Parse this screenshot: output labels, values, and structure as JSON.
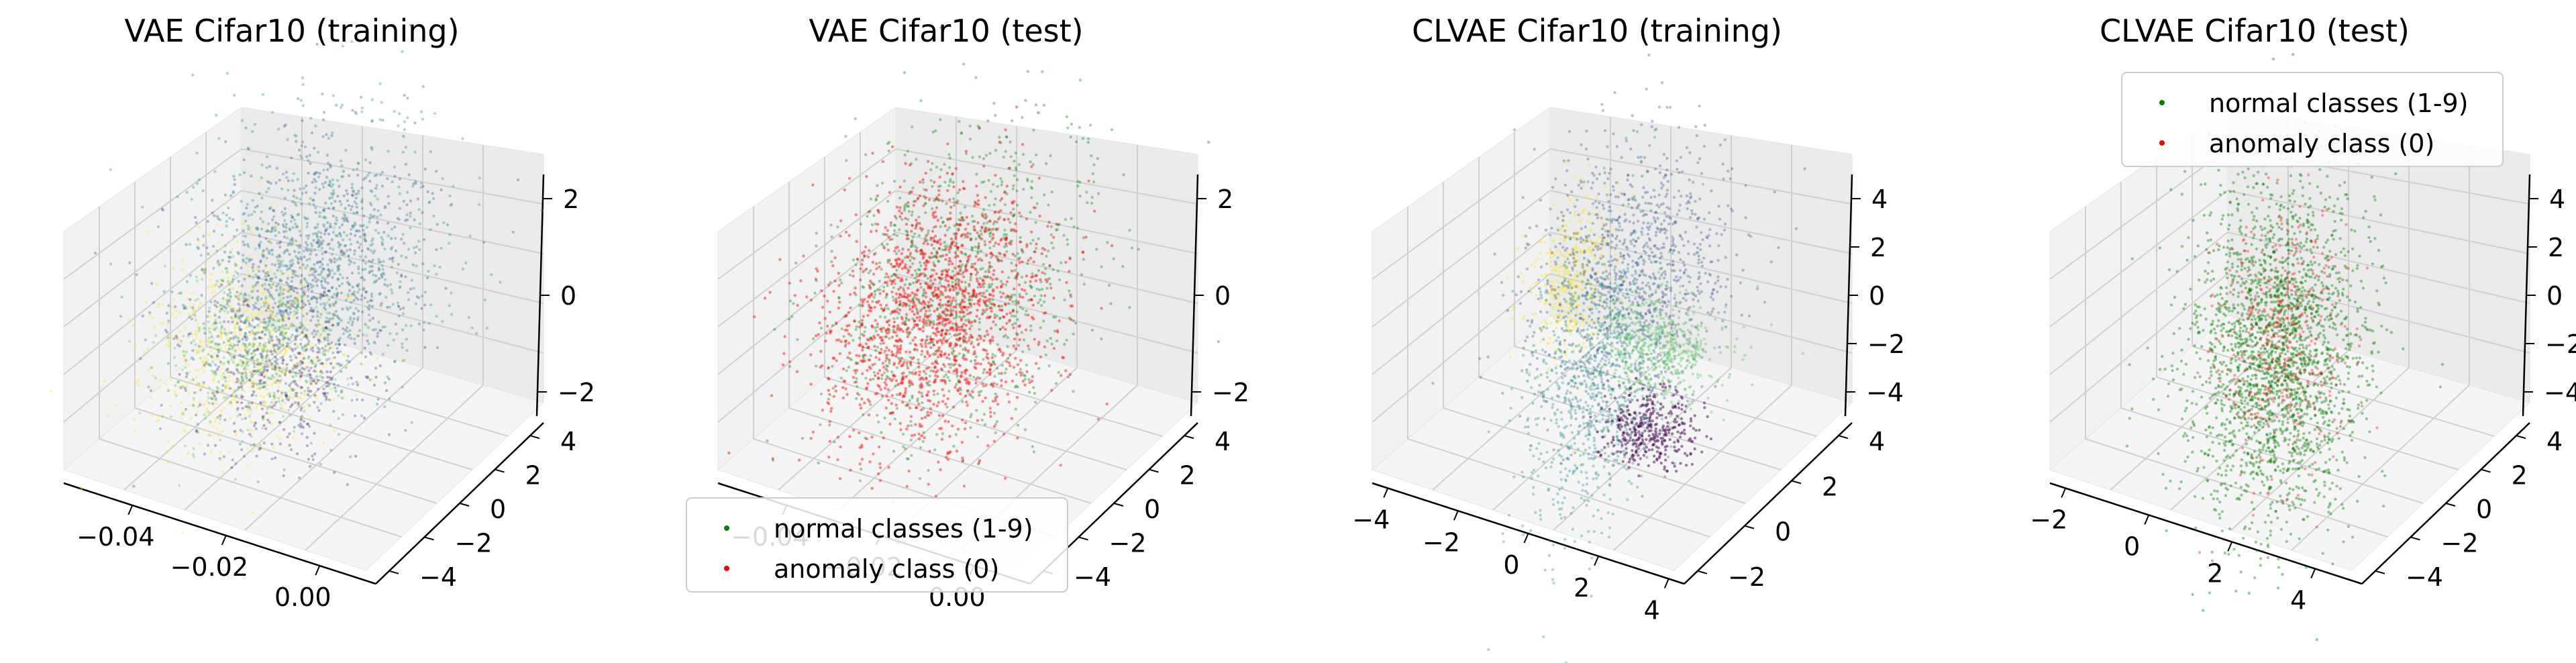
{
  "figure": {
    "background": "#ffffff"
  },
  "chart_data": [
    {
      "type": "scatter",
      "title": "VAE Cifar10 (training)",
      "coloring": "viridis by class",
      "xticks": [
        "−0.04",
        "−0.02",
        "0.00"
      ],
      "yticks": [
        "−4",
        "−2",
        "0",
        "2",
        "4"
      ],
      "zticks": [
        "−2",
        "0",
        "2"
      ],
      "xlim": [
        -0.05,
        0.01
      ],
      "ylim": [
        -4.5,
        4.5
      ],
      "zlim": [
        -3.5,
        3
      ],
      "grid": true,
      "legend": false,
      "cluster_colors": [
        "#21918c",
        "#3b528b",
        "#fde725",
        "#5ec962",
        "#440154"
      ]
    },
    {
      "type": "scatter",
      "title": "VAE Cifar10 (test)",
      "xticks": [
        "−0.04",
        "−0.02",
        "0.00"
      ],
      "yticks": [
        "−4",
        "−2",
        "0",
        "2",
        "4"
      ],
      "zticks": [
        "−2",
        "0",
        "2"
      ],
      "xlim": [
        -0.05,
        0.01
      ],
      "ylim": [
        -4.5,
        4.5
      ],
      "zlim": [
        -3.5,
        3
      ],
      "grid": true,
      "legend": true,
      "legend_position": "lower-left",
      "series": [
        {
          "name": "normal classes (1-9)",
          "color": "#008000"
        },
        {
          "name": "anomaly class (0)",
          "color": "#ff0000"
        }
      ]
    },
    {
      "type": "scatter",
      "title": "CLVAE Cifar10 (training)",
      "coloring": "viridis by class",
      "xticks": [
        "−4",
        "−2",
        "0",
        "2",
        "4"
      ],
      "yticks": [
        "−2",
        "0",
        "2",
        "4"
      ],
      "zticks": [
        "−4",
        "−2",
        "0",
        "2",
        "4"
      ],
      "xlim": [
        -4.5,
        4.5
      ],
      "ylim": [
        -3,
        5
      ],
      "zlim": [
        -4.5,
        4.5
      ],
      "grid": true,
      "legend": false,
      "cluster_colors": [
        "#fde725",
        "#3b528b",
        "#21918c",
        "#5ec962",
        "#440154"
      ]
    },
    {
      "type": "scatter",
      "title": "CLVAE Cifar10 (test)",
      "xticks": [
        "−2",
        "0",
        "2",
        "4"
      ],
      "yticks": [
        "−4",
        "−2",
        "0",
        "2",
        "4"
      ],
      "zticks": [
        "−4",
        "−2",
        "0",
        "2",
        "4"
      ],
      "xlim": [
        -3.5,
        4.5
      ],
      "ylim": [
        -4.5,
        4.5
      ],
      "zlim": [
        -4.5,
        4.5
      ],
      "grid": true,
      "legend": true,
      "legend_position": "upper-right",
      "series": [
        {
          "name": "normal classes (1-9)",
          "color": "#008000"
        },
        {
          "name": "anomaly class (0)",
          "color": "#ff0000"
        }
      ]
    }
  ]
}
